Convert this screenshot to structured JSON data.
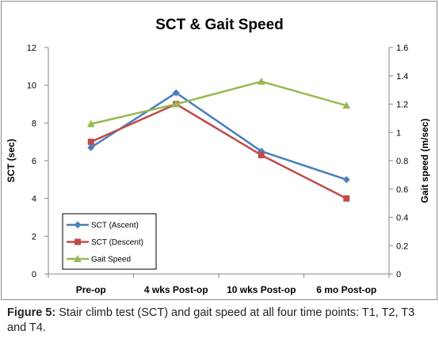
{
  "chart_data": {
    "type": "line",
    "title": "SCT & Gait Speed",
    "categories": [
      "Pre-op",
      "4 wks Post-op",
      "10 wks Post-op",
      "6 mo Post-op"
    ],
    "ylabel": "SCT (sec)",
    "ylabel_right": "Gait speed (m/sec)",
    "ylim": [
      0,
      12
    ],
    "yticks": [
      0,
      2,
      4,
      6,
      8,
      10,
      12
    ],
    "ylim_right": [
      0,
      1.6
    ],
    "yticks_right": [
      "0",
      "0.2",
      "0.4",
      "0.6",
      "0.8",
      "1",
      "1.2",
      "1.4",
      "1.6"
    ],
    "grid": false,
    "legend_position": "bottom-left",
    "series": [
      {
        "name": "SCT (Ascent)",
        "axis": "left",
        "color": "#4a7ebb",
        "marker": "diamond",
        "values": [
          6.7,
          9.6,
          6.5,
          5.0
        ]
      },
      {
        "name": "SCT (Descent)",
        "axis": "left",
        "color": "#be4b48",
        "marker": "square",
        "values": [
          7.0,
          9.0,
          6.3,
          4.0
        ]
      },
      {
        "name": "Gait Speed",
        "axis": "right",
        "color": "#98b954",
        "marker": "triangle",
        "values": [
          1.06,
          1.2,
          1.36,
          1.19
        ]
      }
    ]
  },
  "caption": {
    "label": "Figure 5:",
    "text": " Stair climb test (SCT) and gait speed at all four time points: T1, T2, T3 and T4."
  }
}
